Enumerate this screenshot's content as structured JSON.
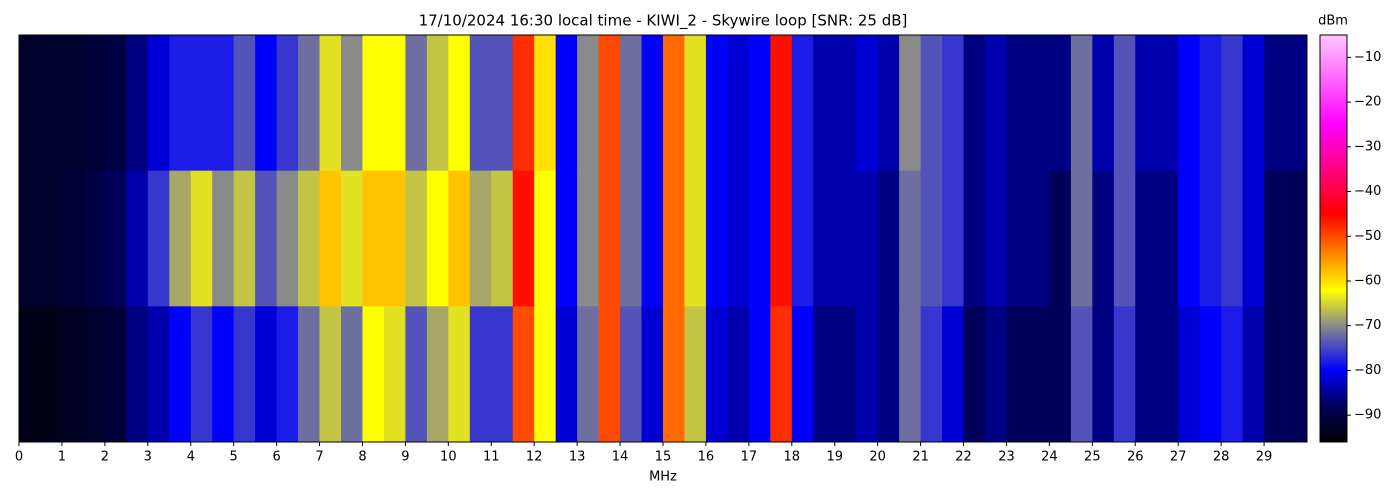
{
  "chart_data": {
    "type": "heatmap",
    "title": "17/10/2024 16:30 local time - KIWI_2 - Skywire loop [SNR: 25 dB]",
    "xlabel": "MHz",
    "colorbar_label": "dBm",
    "bins": [
      0,
      0.5,
      1,
      1.5,
      2,
      2.5,
      3,
      3.5,
      4,
      4.5,
      5,
      5.5,
      6,
      6.5,
      7,
      7.5,
      8,
      8.5,
      9,
      9.5,
      10,
      10.5,
      11,
      11.5,
      12,
      12.5,
      13,
      13.5,
      14,
      14.5,
      15,
      15.5,
      16,
      16.5,
      17,
      17.5,
      18,
      18.5,
      19,
      19.5,
      20,
      20.5,
      21,
      21.5,
      22,
      22.5,
      23,
      23.5,
      24,
      24.5,
      25,
      25.5,
      26,
      26.5,
      27,
      27.5,
      28,
      28.5,
      29,
      29.5,
      30
    ],
    "z": [
      [
        -92,
        -92,
        -92,
        -91,
        -90,
        -86,
        -82,
        -78,
        -78,
        -78,
        -74,
        -80,
        -76,
        -72,
        -64,
        -70,
        -62,
        -62,
        -72,
        -66,
        -62,
        -74,
        -74,
        -48,
        -60,
        -80,
        -70,
        -50,
        -72,
        -80,
        -52,
        -64,
        -80,
        -82,
        -80,
        -46,
        -78,
        -84,
        -84,
        -82,
        -84,
        -70,
        -74,
        -76,
        -86,
        -84,
        -86,
        -86,
        -86,
        -72,
        -84,
        -74,
        -84,
        -84,
        -80,
        -78,
        -76,
        -82,
        -86,
        -86
      ],
      [
        -92,
        -92,
        -91,
        -90,
        -88,
        -84,
        -76,
        -68,
        -64,
        -70,
        -66,
        -74,
        -70,
        -66,
        -58,
        -64,
        -58,
        -58,
        -66,
        -62,
        -58,
        -68,
        -66,
        -46,
        -62,
        -80,
        -70,
        -50,
        -72,
        -80,
        -52,
        -64,
        -80,
        -82,
        -80,
        -46,
        -78,
        -84,
        -84,
        -84,
        -86,
        -72,
        -74,
        -76,
        -86,
        -84,
        -86,
        -86,
        -88,
        -72,
        -86,
        -74,
        -86,
        -86,
        -80,
        -78,
        -76,
        -82,
        -88,
        -88
      ],
      [
        -94,
        -94,
        -93,
        -92,
        -91,
        -86,
        -84,
        -80,
        -76,
        -80,
        -76,
        -82,
        -78,
        -72,
        -66,
        -72,
        -62,
        -64,
        -74,
        -68,
        -64,
        -76,
        -76,
        -50,
        -62,
        -82,
        -72,
        -50,
        -74,
        -82,
        -52,
        -66,
        -82,
        -84,
        -80,
        -48,
        -80,
        -86,
        -86,
        -84,
        -86,
        -72,
        -76,
        -82,
        -88,
        -86,
        -88,
        -88,
        -88,
        -74,
        -86,
        -76,
        -86,
        -86,
        -82,
        -80,
        -78,
        -84,
        -88,
        -88
      ]
    ],
    "xlim": [
      0,
      30
    ],
    "xticks": [
      0,
      1,
      2,
      3,
      4,
      5,
      6,
      7,
      8,
      9,
      10,
      11,
      12,
      13,
      14,
      15,
      16,
      17,
      18,
      19,
      20,
      21,
      22,
      23,
      24,
      25,
      26,
      27,
      28,
      29
    ],
    "clim": [
      -96,
      -5
    ],
    "cticks": [
      {
        "value": -90,
        "label": "−90"
      },
      {
        "value": -80,
        "label": "−80"
      },
      {
        "value": -70,
        "label": "−70"
      },
      {
        "value": -60,
        "label": "−60"
      },
      {
        "value": -50,
        "label": "−50"
      },
      {
        "value": -40,
        "label": "−40"
      },
      {
        "value": -30,
        "label": "−30"
      },
      {
        "value": -20,
        "label": "−20"
      },
      {
        "value": -10,
        "label": "−10"
      }
    ],
    "colorscale": [
      [
        -96,
        "#000000"
      ],
      [
        -88,
        "#00005a"
      ],
      [
        -80,
        "#0000ff"
      ],
      [
        -70,
        "#8a8a8a"
      ],
      [
        -62,
        "#ffff00"
      ],
      [
        -45,
        "#ff0000"
      ],
      [
        -25,
        "#ff00ff"
      ],
      [
        -5,
        "#ffc8ff"
      ]
    ]
  }
}
